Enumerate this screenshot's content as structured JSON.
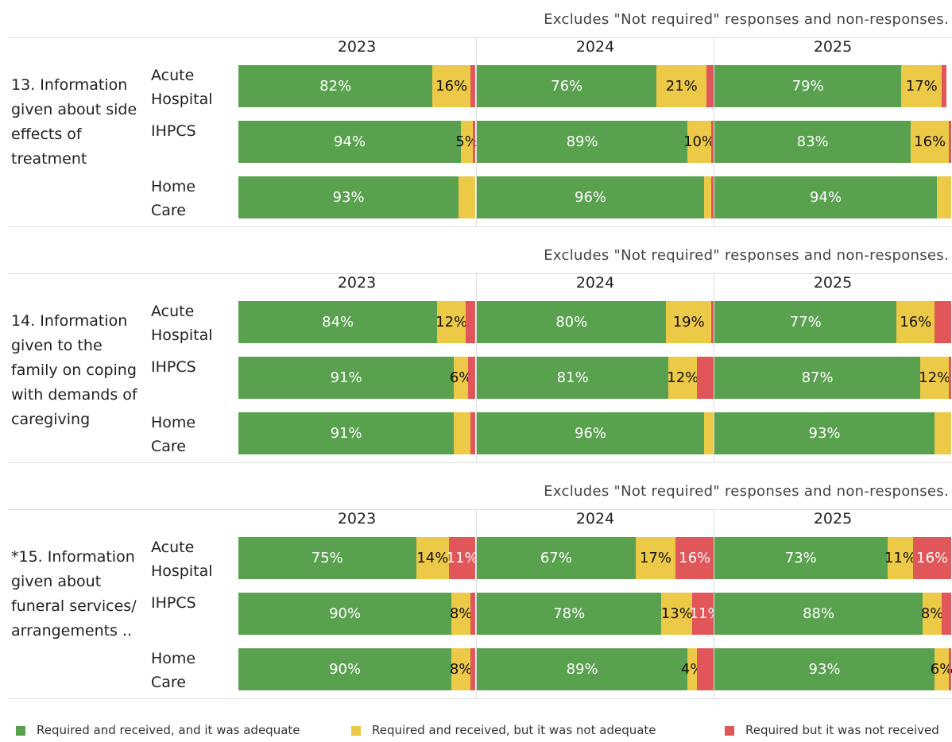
{
  "chart_data": [
    {
      "type": "bar",
      "stacked": true,
      "title": "13. Information given about side effects of treatment",
      "note": "Excludes \"Not required\" responses and non-responses.",
      "categories": [
        "Acute Hospital",
        "IHPCS",
        "Home Care"
      ],
      "xlim": [
        0,
        100
      ],
      "panels": [
        {
          "label": "2023",
          "series": [
            {
              "values": [
                82,
                94,
                93
              ],
              "value_labels": [
                "82%",
                "94%",
                "93%"
              ]
            },
            {
              "values": [
                16,
                5,
                7
              ],
              "value_labels": [
                "16%",
                "5%",
                null
              ]
            },
            {
              "values": [
                2,
                1,
                0
              ],
              "value_labels": [
                null,
                null,
                null
              ]
            }
          ]
        },
        {
          "label": "2024",
          "series": [
            {
              "values": [
                76,
                89,
                96
              ],
              "value_labels": [
                "76%",
                "89%",
                "96%"
              ]
            },
            {
              "values": [
                21,
                10,
                3
              ],
              "value_labels": [
                "21%",
                "10%",
                null
              ]
            },
            {
              "values": [
                3,
                1,
                1
              ],
              "value_labels": [
                null,
                null,
                null
              ]
            }
          ]
        },
        {
          "label": "2025",
          "series": [
            {
              "values": [
                79,
                83,
                94
              ],
              "value_labels": [
                "79%",
                "83%",
                "94%"
              ]
            },
            {
              "values": [
                17,
                16,
                6
              ],
              "value_labels": [
                "17%",
                "16%",
                null
              ]
            },
            {
              "values": [
                2,
                1,
                0
              ],
              "value_labels": [
                null,
                null,
                null
              ]
            }
          ]
        }
      ]
    },
    {
      "type": "bar",
      "stacked": true,
      "title": "14. Information given to the family on coping with demands of caregiving",
      "note": "Excludes \"Not required\" responses and non-responses.",
      "categories": [
        "Acute Hospital",
        "IHPCS",
        "Home Care"
      ],
      "xlim": [
        0,
        100
      ],
      "panels": [
        {
          "label": "2023",
          "series": [
            {
              "values": [
                84,
                91,
                91
              ],
              "value_labels": [
                "84%",
                "91%",
                "91%"
              ]
            },
            {
              "values": [
                12,
                6,
                7
              ],
              "value_labels": [
                "12%",
                "6%",
                null
              ]
            },
            {
              "values": [
                4,
                3,
                2
              ],
              "value_labels": [
                null,
                null,
                null
              ]
            }
          ]
        },
        {
          "label": "2024",
          "series": [
            {
              "values": [
                80,
                81,
                96
              ],
              "value_labels": [
                "80%",
                "81%",
                "96%"
              ]
            },
            {
              "values": [
                19,
                12,
                4
              ],
              "value_labels": [
                "19%",
                "12%",
                null
              ]
            },
            {
              "values": [
                1,
                7,
                0
              ],
              "value_labels": [
                null,
                null,
                null
              ]
            }
          ]
        },
        {
          "label": "2025",
          "series": [
            {
              "values": [
                77,
                87,
                93
              ],
              "value_labels": [
                "77%",
                "87%",
                "93%"
              ]
            },
            {
              "values": [
                16,
                12,
                7
              ],
              "value_labels": [
                "16%",
                "12%",
                null
              ]
            },
            {
              "values": [
                7,
                1,
                0
              ],
              "value_labels": [
                null,
                null,
                null
              ]
            }
          ]
        }
      ]
    },
    {
      "type": "bar",
      "stacked": true,
      "title": "*15. Information given about funeral services/ arrangements ..",
      "note": "Excludes \"Not required\" responses and non-responses.",
      "categories": [
        "Acute Hospital",
        "IHPCS",
        "Home Care"
      ],
      "xlim": [
        0,
        100
      ],
      "panels": [
        {
          "label": "2023",
          "series": [
            {
              "values": [
                75,
                90,
                90
              ],
              "value_labels": [
                "75%",
                "90%",
                "90%"
              ]
            },
            {
              "values": [
                14,
                8,
                8
              ],
              "value_labels": [
                "14%",
                "8%",
                "8%"
              ]
            },
            {
              "values": [
                11,
                2,
                2
              ],
              "value_labels": [
                "11%",
                null,
                null
              ]
            }
          ]
        },
        {
          "label": "2024",
          "series": [
            {
              "values": [
                67,
                78,
                89
              ],
              "value_labels": [
                "67%",
                "78%",
                "89%"
              ]
            },
            {
              "values": [
                17,
                13,
                4
              ],
              "value_labels": [
                "17%",
                "13%",
                "4%"
              ]
            },
            {
              "values": [
                16,
                11,
                7
              ],
              "value_labels": [
                "16%",
                "11%",
                null
              ]
            }
          ]
        },
        {
          "label": "2025",
          "series": [
            {
              "values": [
                73,
                88,
                93
              ],
              "value_labels": [
                "73%",
                "88%",
                "93%"
              ]
            },
            {
              "values": [
                11,
                8,
                6
              ],
              "value_labels": [
                "11%",
                "8%",
                "6%"
              ]
            },
            {
              "values": [
                16,
                4,
                1
              ],
              "value_labels": [
                "16%",
                null,
                null
              ]
            }
          ]
        }
      ]
    }
  ],
  "legend": {
    "series": [
      {
        "name": "Required and received, and it was adequate",
        "color": "#59a14f"
      },
      {
        "name": "Required and received, but it was not adequate",
        "color": "#edc948"
      },
      {
        "name": "Required but it was not received",
        "color": "#e15759"
      }
    ]
  }
}
